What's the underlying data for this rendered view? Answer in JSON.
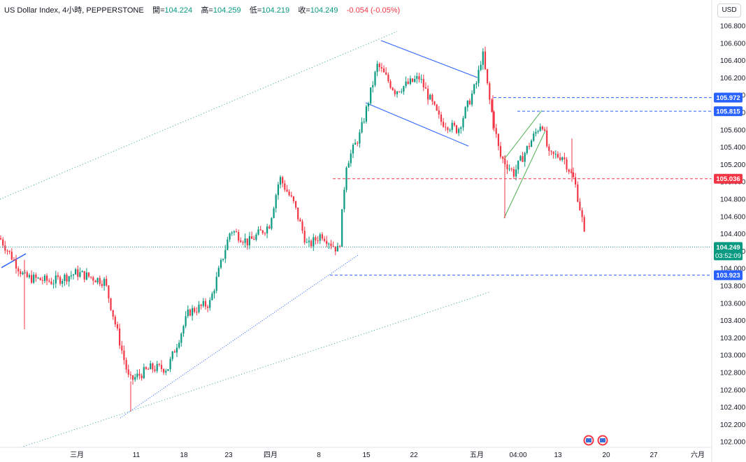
{
  "header": {
    "title": "US Dollar Index, 4小時, PEPPERSTONE",
    "open_label": "開=",
    "open": "104.224",
    "high_label": "高=",
    "high": "104.259",
    "low_label": "低=",
    "low": "104.219",
    "close_label": "收=",
    "close": "104.249",
    "change": "-0.054 (-0.05%)"
  },
  "currency_button": "USD",
  "colors": {
    "up": "#089981",
    "down": "#f23645",
    "blue_line": "#2962ff",
    "green_line": "#4caf50",
    "dotted_green": "#26a69a",
    "price_tag": "#089981"
  },
  "chart_data": {
    "type": "candlestick",
    "title": "US Dollar Index, 4小時, PEPPERSTONE",
    "ylim": [
      101.9,
      106.95
    ],
    "y_ticks": [
      "106.800",
      "106.600",
      "106.400",
      "106.200",
      "106.000",
      "105.800",
      "105.600",
      "105.400",
      "105.200",
      "105.000",
      "104.800",
      "104.600",
      "104.400",
      "104.200",
      "104.000",
      "103.800",
      "103.600",
      "103.400",
      "103.200",
      "103.000",
      "102.800",
      "102.600",
      "102.400",
      "102.200",
      "102.000"
    ],
    "x_ticks": [
      "三月",
      "11",
      "18",
      "23",
      "四月",
      "8",
      "15",
      "22",
      "五月",
      "04:00",
      "13",
      "20",
      "27",
      "六月"
    ],
    "last_price": "104.249",
    "countdown": "03:52:09",
    "price_labels": [
      {
        "value": "105.972",
        "color": "blue"
      },
      {
        "value": "105.815",
        "color": "blue"
      },
      {
        "value": "105.036",
        "color": "red"
      },
      {
        "value": "103.923",
        "color": "blue"
      }
    ],
    "anchor_path": [
      [
        0,
        104.35
      ],
      [
        35,
        103.9
      ],
      [
        75,
        103.85
      ],
      [
        110,
        103.95
      ],
      [
        150,
        103.85
      ],
      [
        185,
        102.7
      ],
      [
        215,
        102.85
      ],
      [
        240,
        102.85
      ],
      [
        270,
        103.5
      ],
      [
        300,
        103.6
      ],
      [
        330,
        104.45
      ],
      [
        355,
        104.3
      ],
      [
        385,
        104.5
      ],
      [
        400,
        105.05
      ],
      [
        420,
        104.75
      ],
      [
        440,
        104.25
      ],
      [
        460,
        104.4
      ],
      [
        485,
        104.2
      ],
      [
        495,
        105.2
      ],
      [
        515,
        105.55
      ],
      [
        540,
        106.35
      ],
      [
        565,
        106.05
      ],
      [
        600,
        106.2
      ],
      [
        630,
        105.7
      ],
      [
        655,
        105.6
      ],
      [
        682,
        106.15
      ],
      [
        690,
        106.5
      ],
      [
        700,
        105.95
      ],
      [
        715,
        105.3
      ],
      [
        735,
        105.1
      ],
      [
        755,
        105.4
      ],
      [
        775,
        105.7
      ],
      [
        785,
        105.3
      ],
      [
        805,
        105.3
      ],
      [
        822,
        105.0
      ],
      [
        832,
        104.6
      ],
      [
        838,
        104.25
      ]
    ]
  }
}
